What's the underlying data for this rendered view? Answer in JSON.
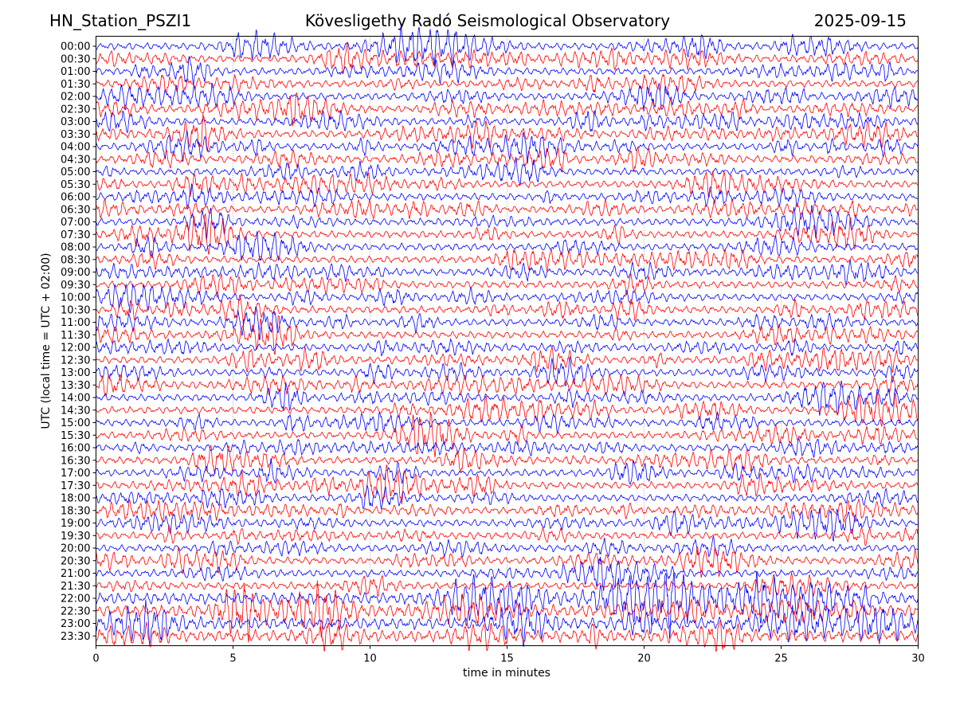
{
  "header": {
    "station": "HN_Station_PSZI1",
    "title": "Kövesligethy Radó Seismological Observatory",
    "date": "2025-09-15"
  },
  "chart_data": {
    "type": "line",
    "subtype": "helicorder",
    "xlabel": "time in minutes",
    "ylabel": "UTC (local time = UTC + 02:00)",
    "xlim": [
      0,
      30
    ],
    "x_ticks": [
      0,
      5,
      10,
      15,
      20,
      25,
      30
    ],
    "rows": [
      "00:00",
      "00:30",
      "01:00",
      "01:30",
      "02:00",
      "02:30",
      "03:00",
      "03:30",
      "04:00",
      "04:30",
      "05:00",
      "05:30",
      "06:00",
      "06:30",
      "07:00",
      "07:30",
      "08:00",
      "08:30",
      "09:00",
      "09:30",
      "10:00",
      "10:30",
      "11:00",
      "11:30",
      "12:00",
      "12:30",
      "13:00",
      "13:30",
      "14:00",
      "14:30",
      "15:00",
      "15:30",
      "16:00",
      "16:30",
      "17:00",
      "17:30",
      "18:00",
      "18:30",
      "19:00",
      "19:30",
      "20:00",
      "20:30",
      "21:00",
      "21:30",
      "22:00",
      "22:30",
      "23:00",
      "23:30"
    ],
    "trace_colors": [
      "#0000ff",
      "#ff0000"
    ],
    "grid": "vertical dotted at x ticks",
    "legend": "none"
  }
}
